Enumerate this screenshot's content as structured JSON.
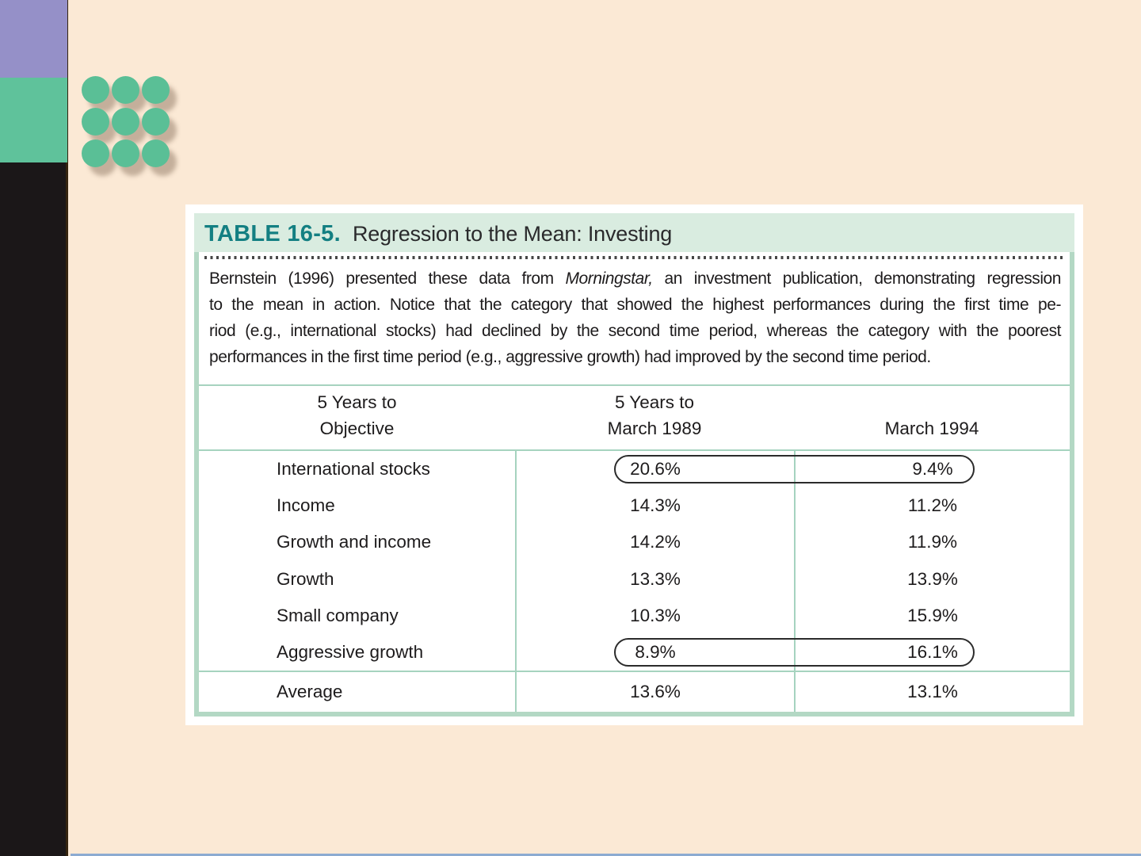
{
  "colors": {
    "page_background": "#fbe9d5",
    "rail_black": "#1b1718",
    "block_purple": "#9590c8",
    "block_green": "#5fc29b",
    "dot_green": "#5abf96",
    "card_border_green": "#b3d8c4",
    "title_band_green": "#d9ece0",
    "grid_line_green": "#a6d3bf",
    "title_teal": "#137f82",
    "text_dark": "#1d1b1c",
    "bottom_line_blue": "#8cabd1"
  },
  "card": {
    "label": "TABLE 16-5.",
    "title": "Regression to the Mean: Investing",
    "description": {
      "l1a": "Bernstein (1996) presented these data from ",
      "l1b": "Morningstar,",
      "l1c": " an investment publication, demonstrating regression",
      "l2": "to the mean in action. Notice that the category that showed the highest performances during the first time pe-",
      "l3": "riod (e.g., international stocks) had declined by the second time period, whereas the category with the poorest",
      "l4": "performances in the first time period (e.g., aggressive growth) had improved by the second time period."
    }
  },
  "table": {
    "header": {
      "col1_line1": "5 Years to",
      "col1_line2": "Objective",
      "col2_line1": "5 Years to",
      "col2_line2": "March 1989",
      "col3_line2": "March 1994"
    },
    "rows": [
      {
        "label": "International stocks",
        "v1989": "20.6%",
        "v1994": "9.4%",
        "circled": true
      },
      {
        "label": "Income",
        "v1989": "14.3%",
        "v1994": "11.2%",
        "circled": false
      },
      {
        "label": "Growth and income",
        "v1989": "14.2%",
        "v1994": "11.9%",
        "circled": false
      },
      {
        "label": "Growth",
        "v1989": "13.3%",
        "v1994": "13.9%",
        "circled": false
      },
      {
        "label": "Small company",
        "v1989": "10.3%",
        "v1994": "15.9%",
        "circled": false
      },
      {
        "label": "Aggressive growth",
        "v1989": "8.9%",
        "v1994": "16.1%",
        "circled": true
      }
    ],
    "average": {
      "label": "Average",
      "v1989": "13.6%",
      "v1994": "13.1%"
    }
  },
  "chart_data": {
    "type": "table",
    "title": "TABLE 16-5. Regression to the Mean: Investing",
    "columns": [
      "Objective",
      "5 Years to March 1989",
      "5 Years to March 1994"
    ],
    "rows": [
      [
        "International stocks",
        20.6,
        9.4
      ],
      [
        "Income",
        14.3,
        11.2
      ],
      [
        "Growth and income",
        14.2,
        11.9
      ],
      [
        "Growth",
        13.3,
        13.9
      ],
      [
        "Small company",
        10.3,
        15.9
      ],
      [
        "Aggressive growth",
        8.9,
        16.1
      ]
    ],
    "average_row": [
      "Average",
      13.6,
      13.1
    ],
    "annotations": "Values for International stocks (20.6% → 9.4%) and Aggressive growth (8.9% → 16.1%) are circled with ovals spanning both value columns"
  }
}
